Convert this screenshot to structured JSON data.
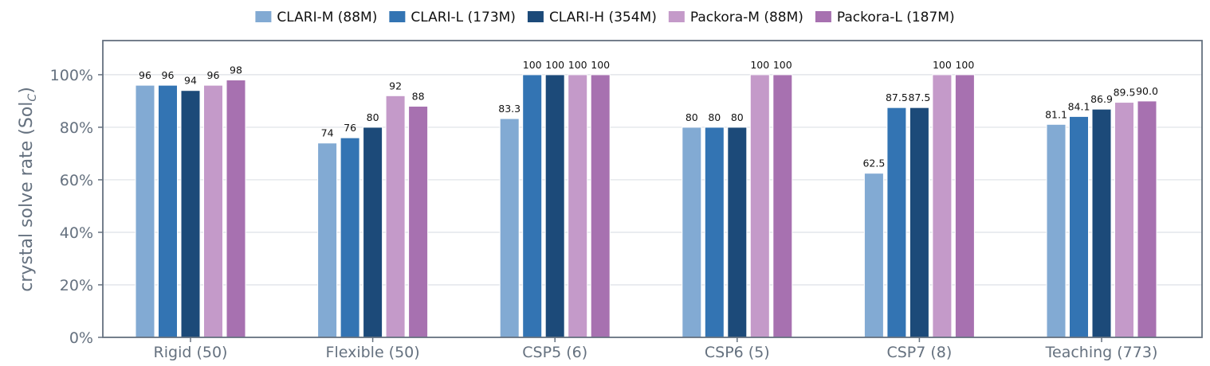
{
  "chart_data": {
    "type": "bar",
    "ylabel": "crystal solve rate (Sol",
    "ylabel_sub": "C",
    "ylabel_close": ")",
    "ylim": [
      0,
      113
    ],
    "yticks": [
      0,
      20,
      40,
      60,
      80,
      100
    ],
    "ytick_labels": [
      "0%",
      "20%",
      "40%",
      "60%",
      "80%",
      "100%"
    ],
    "grid": true,
    "legend_position": "top-center",
    "categories": [
      "Rigid (50)",
      "Flexible (50)",
      "CSP5 (6)",
      "CSP6 (5)",
      "CSP7 (8)",
      "Teaching (773)"
    ],
    "series": [
      {
        "name": "CLARI-M (88M)",
        "color": "#82aad3",
        "values": [
          96,
          74,
          83.3,
          80,
          62.5,
          81.1
        ],
        "labels": [
          "96",
          "74",
          "83.3",
          "80",
          "62.5",
          "81.1"
        ]
      },
      {
        "name": "CLARI-L (173M)",
        "color": "#3374b3",
        "values": [
          96,
          76,
          100,
          80,
          87.5,
          84.1
        ],
        "labels": [
          "96",
          "76",
          "100",
          "80",
          "87.5",
          "84.1"
        ]
      },
      {
        "name": "CLARI-H (354M)",
        "color": "#1c4a79",
        "values": [
          94,
          80,
          100,
          80,
          87.5,
          86.9
        ],
        "labels": [
          "94",
          "80",
          "100",
          "80",
          "87.5",
          "86.9"
        ]
      },
      {
        "name": "Packora-M (88M)",
        "color": "#c49ac9",
        "values": [
          96,
          92,
          100,
          100,
          100,
          89.5
        ],
        "labels": [
          "96",
          "92",
          "100",
          "100",
          "100",
          "89.5"
        ]
      },
      {
        "name": "Packora-L (187M)",
        "color": "#a771b0",
        "values": [
          98,
          88,
          100,
          100,
          100,
          90.0
        ],
        "labels": [
          "98",
          "88",
          "100",
          "100",
          "100",
          "90.0"
        ]
      }
    ]
  }
}
